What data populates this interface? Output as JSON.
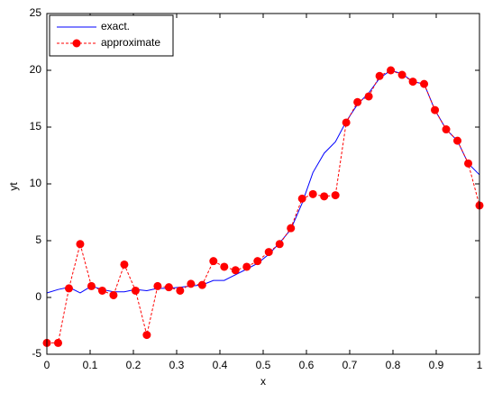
{
  "chart_data": {
    "type": "line",
    "x_label": "x",
    "y_label": "yt",
    "x": [
      0,
      0.026,
      0.051,
      0.077,
      0.103,
      0.128,
      0.154,
      0.179,
      0.205,
      0.231,
      0.256,
      0.282,
      0.308,
      0.333,
      0.359,
      0.385,
      0.41,
      0.436,
      0.462,
      0.487,
      0.513,
      0.538,
      0.564,
      0.59,
      0.615,
      0.641,
      0.667,
      0.692,
      0.718,
      0.744,
      0.769,
      0.795,
      0.821,
      0.846,
      0.872,
      0.897,
      0.923,
      0.949,
      0.974,
      1
    ],
    "series": [
      {
        "name": "exact.",
        "color": "#0000ff",
        "linestyle": "solid",
        "marker": "none",
        "values": [
          0.4,
          0.7,
          0.9,
          0.4,
          1.0,
          0.7,
          0.5,
          0.5,
          0.7,
          0.6,
          0.8,
          0.8,
          0.9,
          1.0,
          1.1,
          1.5,
          1.5,
          2.0,
          2.5,
          3.0,
          3.8,
          4.8,
          6.0,
          8.3,
          11.0,
          12.7,
          13.7,
          15.5,
          17.0,
          18.0,
          19.3,
          20.0,
          19.7,
          19.0,
          18.8,
          16.5,
          14.8,
          13.8,
          11.8,
          10.8
        ]
      },
      {
        "name": "approximate",
        "color": "#ff0000",
        "linestyle": "dashed",
        "marker": "circle",
        "values": [
          -4.0,
          -4.0,
          0.8,
          4.7,
          1.0,
          0.6,
          0.2,
          2.9,
          0.6,
          -3.3,
          1.0,
          0.9,
          0.6,
          1.2,
          1.1,
          3.2,
          2.7,
          2.4,
          2.7,
          3.2,
          4.0,
          4.7,
          6.1,
          8.7,
          9.1,
          8.9,
          9.0,
          15.4,
          17.2,
          17.7,
          19.5,
          20.0,
          19.6,
          19.0,
          18.8,
          16.5,
          14.8,
          13.8,
          11.8,
          8.1
        ]
      }
    ],
    "xlim": [
      0,
      1
    ],
    "xticks": [
      0,
      0.1,
      0.2,
      0.3,
      0.4,
      0.5,
      0.6,
      0.7,
      0.8,
      0.9,
      1
    ],
    "ylim": [
      -5,
      25
    ],
    "yticks": [
      -5,
      0,
      5,
      10,
      15,
      20,
      25
    ],
    "grid": false,
    "legend_position": "upper-left"
  }
}
